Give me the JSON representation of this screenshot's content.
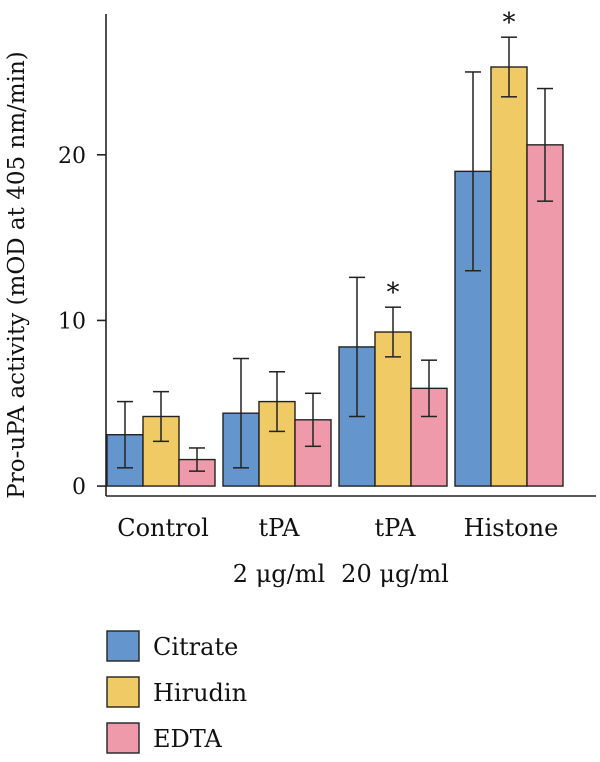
{
  "chart_data": {
    "type": "bar",
    "ylabel": "Pro-uPA activity (mOD at 405 nm/min)",
    "yticks": [
      0,
      10,
      20
    ],
    "ylim": [
      -0.6,
      28.5
    ],
    "categories": [
      {
        "line1": "Control",
        "line2": ""
      },
      {
        "line1": "tPA",
        "line2": "2 μg/ml"
      },
      {
        "line1": "tPA",
        "line2": "20 μg/ml"
      },
      {
        "line1": "Histone",
        "line2": ""
      }
    ],
    "series": [
      {
        "name": "Citrate",
        "color": "#6495cc",
        "values": [
          3.1,
          4.4,
          8.4,
          19.0
        ],
        "errors": [
          2.0,
          3.3,
          4.2,
          6.0
        ]
      },
      {
        "name": "Hirudin",
        "color": "#f0ca64",
        "values": [
          4.2,
          5.1,
          9.3,
          25.3
        ],
        "errors": [
          1.5,
          1.8,
          1.5,
          1.8
        ]
      },
      {
        "name": "EDTA",
        "color": "#ef9aaa",
        "values": [
          1.6,
          4.0,
          5.9,
          20.6
        ],
        "errors": [
          0.7,
          1.6,
          1.7,
          3.4
        ]
      }
    ],
    "annotations": [
      {
        "category_index": 2,
        "series_index": 1,
        "text": "*"
      },
      {
        "category_index": 3,
        "series_index": 1,
        "text": "*"
      }
    ],
    "grid": false,
    "legend_position": "bottom-left"
  }
}
